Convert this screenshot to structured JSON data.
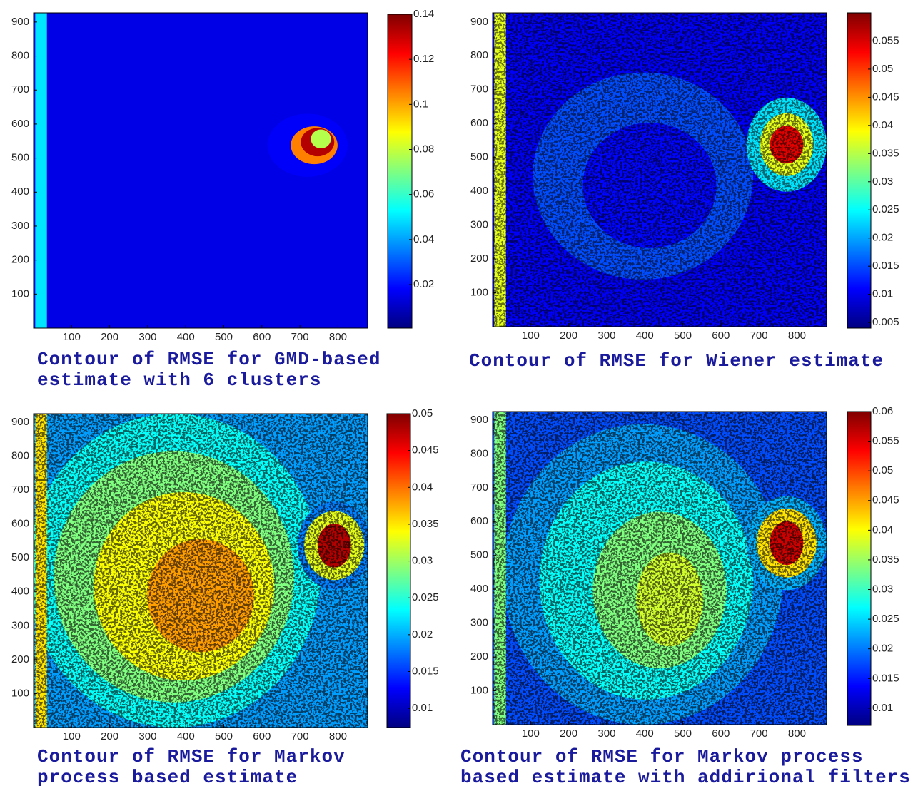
{
  "chart_data": [
    {
      "type": "heatmap",
      "title": "Contour of RMSE for GMD-based estimate with 6 clusters",
      "colormap": "jet",
      "xlim": [
        0,
        878
      ],
      "ylim": [
        0,
        927
      ],
      "xticks": [
        100,
        200,
        300,
        400,
        500,
        600,
        700,
        800
      ],
      "yticks": [
        100,
        200,
        300,
        400,
        500,
        600,
        700,
        800,
        900
      ],
      "colorbar": {
        "clim": [
          0.0007,
          0.14
        ],
        "ticks": [
          0.02,
          0.04,
          0.06,
          0.08,
          0.1,
          0.12,
          0.14
        ]
      }
    },
    {
      "type": "heatmap",
      "title": "Contour of RMSE for Wiener estimate",
      "colormap": "jet",
      "xlim": [
        0,
        878
      ],
      "ylim": [
        0,
        927
      ],
      "xticks": [
        100,
        200,
        300,
        400,
        500,
        600,
        700,
        800
      ],
      "yticks": [
        100,
        200,
        300,
        400,
        500,
        600,
        700,
        800,
        900
      ],
      "colorbar": {
        "clim": [
          0.004,
          0.06
        ],
        "ticks": [
          0.005,
          0.01,
          0.015,
          0.02,
          0.025,
          0.03,
          0.035,
          0.04,
          0.045,
          0.05,
          0.055
        ]
      }
    },
    {
      "type": "heatmap",
      "title": "Contour of RMSE for Markov process based estimate",
      "colormap": "jet",
      "xlim": [
        0,
        878
      ],
      "ylim": [
        0,
        925
      ],
      "xticks": [
        100,
        200,
        300,
        400,
        500,
        600,
        700,
        800
      ],
      "yticks": [
        100,
        200,
        300,
        400,
        500,
        600,
        700,
        800,
        900
      ],
      "colorbar": {
        "clim": [
          0.0074,
          0.05
        ],
        "ticks": [
          0.01,
          0.015,
          0.02,
          0.025,
          0.03,
          0.035,
          0.04,
          0.045,
          0.05
        ]
      }
    },
    {
      "type": "heatmap",
      "title": "Contour of RMSE for Markov process based estimate with addirional filters",
      "colormap": "jet",
      "xlim": [
        0,
        878
      ],
      "ylim": [
        0,
        925
      ],
      "xticks": [
        100,
        200,
        300,
        400,
        500,
        600,
        700,
        800
      ],
      "yticks": [
        100,
        200,
        300,
        400,
        500,
        600,
        700,
        800,
        900
      ],
      "colorbar": {
        "clim": [
          0.0071,
          0.06
        ],
        "ticks": [
          0.01,
          0.015,
          0.02,
          0.025,
          0.03,
          0.035,
          0.04,
          0.045,
          0.05,
          0.055,
          0.06
        ]
      }
    }
  ]
}
